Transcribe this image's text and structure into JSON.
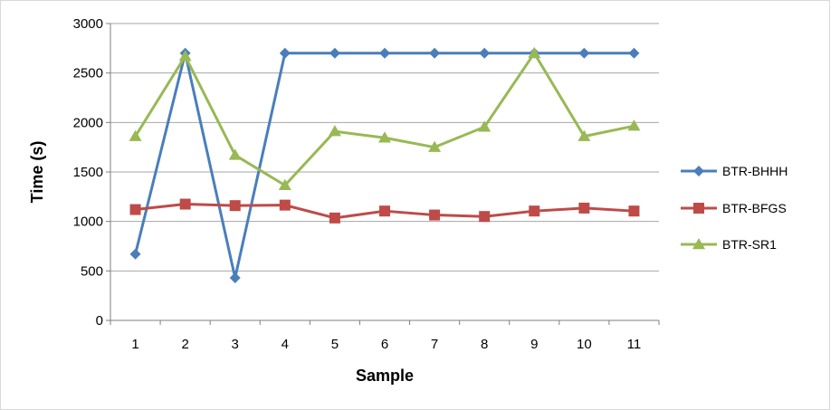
{
  "chart_data": {
    "type": "line",
    "title": "",
    "xlabel": "Sample",
    "ylabel": "Time (s)",
    "categories": [
      "1",
      "2",
      "3",
      "4",
      "5",
      "6",
      "7",
      "8",
      "9",
      "10",
      "11"
    ],
    "ylim": [
      0,
      3000
    ],
    "yticks": [
      "0",
      "500",
      "1000",
      "1500",
      "2000",
      "2500",
      "3000"
    ],
    "grid": "horizontal",
    "legend_position": "right",
    "series": [
      {
        "name": "BTR-BHHH",
        "color": "#4a7ebb",
        "marker": "diamond",
        "values": [
          670,
          2700,
          430,
          2700,
          2700,
          2700,
          2700,
          2700,
          2700,
          2700,
          2700
        ]
      },
      {
        "name": "BTR-BFGS",
        "color": "#be4b48",
        "marker": "square",
        "values": [
          1120,
          1175,
          1160,
          1165,
          1035,
          1105,
          1065,
          1050,
          1105,
          1135,
          1105
        ]
      },
      {
        "name": "BTR-SR1",
        "color": "#98b954",
        "marker": "triangle",
        "values": [
          1860,
          2670,
          1670,
          1365,
          1910,
          1845,
          1750,
          1955,
          2700,
          1860,
          1965
        ]
      }
    ]
  },
  "colors": {
    "gridline": "#a6a6a6",
    "axis": "#7f7f7f",
    "frame": "#d9d9d9"
  }
}
